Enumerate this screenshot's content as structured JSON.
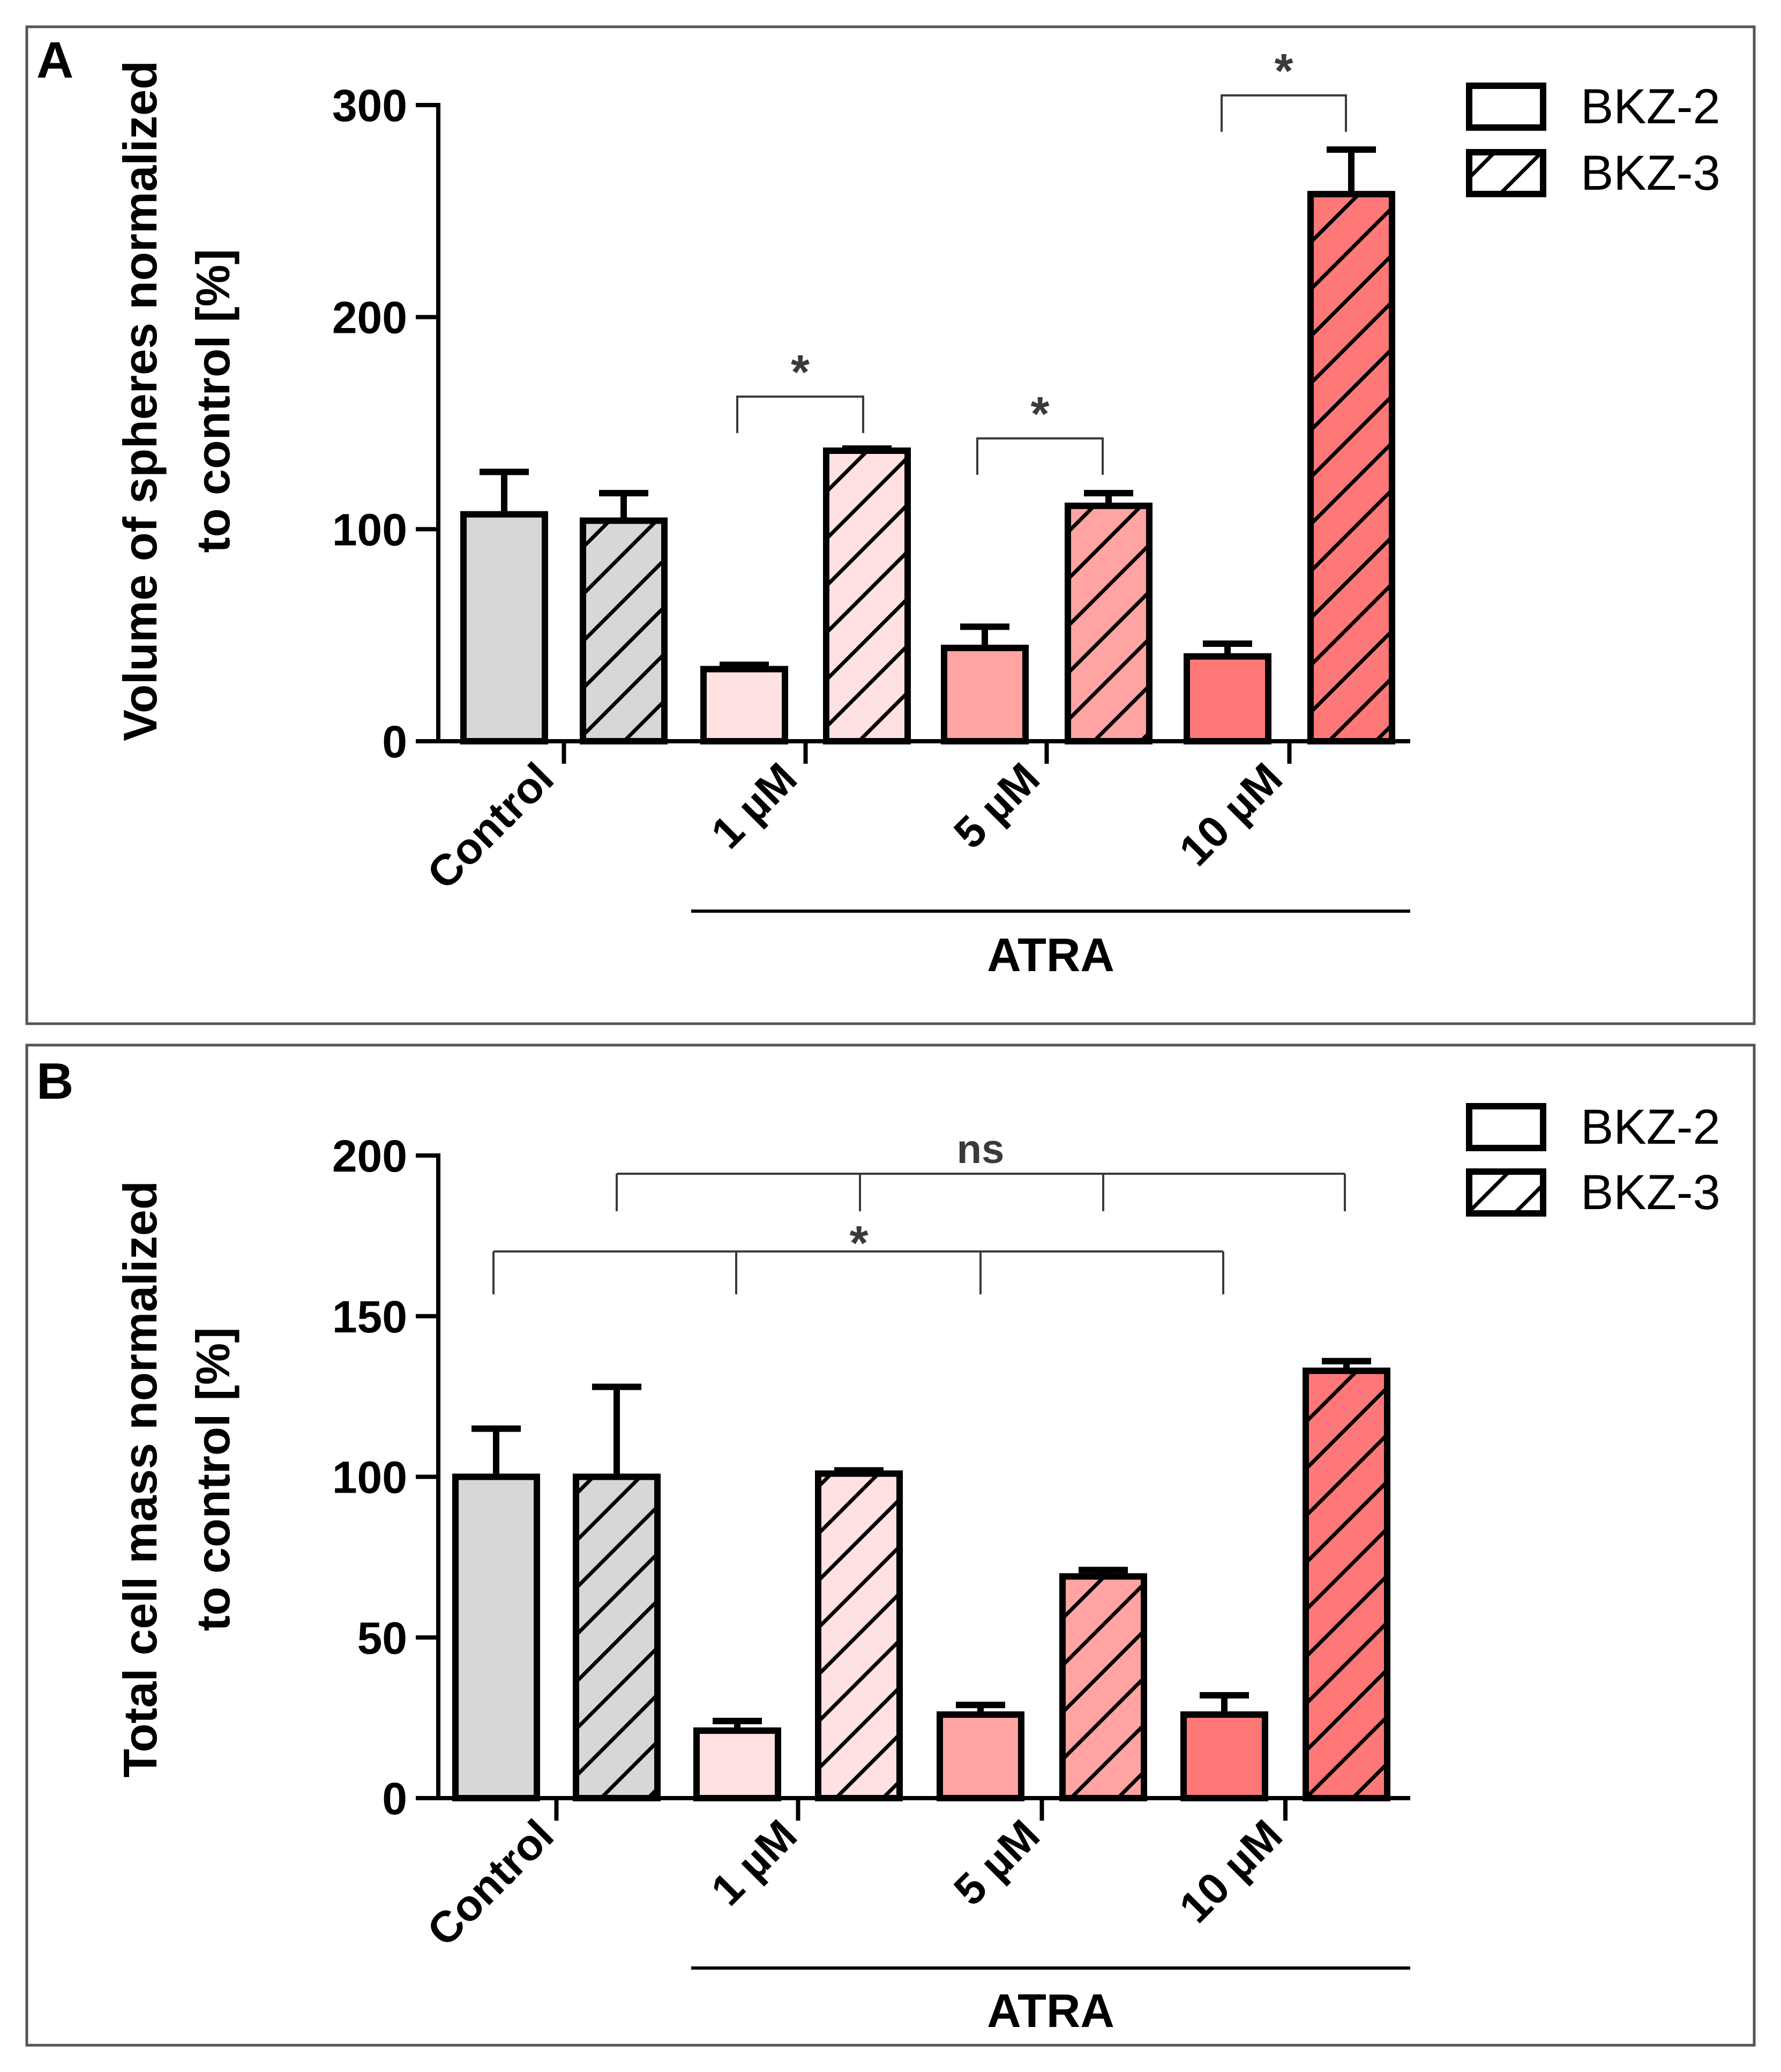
{
  "colors": {
    "control": "#d7d7d7",
    "atra_1uM": "#ffe1e1",
    "atra_5uM": "#ffa3a3",
    "atra_10uM": "#ff7878",
    "stroke": "#000000",
    "bracket": "#3a3a3a",
    "frame": "#555555"
  },
  "chart_data": [
    {
      "panel": "A",
      "type": "bar",
      "ylabel_line1": "Volume of spheres normalized",
      "ylabel_line2": "to control [%]",
      "ylim": [
        0,
        300
      ],
      "yticks": [
        "0",
        "100",
        "200",
        "300"
      ],
      "categories": [
        "Control",
        "1 µM",
        "5 µM",
        "10 µM"
      ],
      "group_label": "ATRA",
      "legend": [
        "BKZ-2",
        "BKZ-3"
      ],
      "series": [
        {
          "name": "BKZ-2",
          "values": [
            107,
            34,
            44,
            40
          ],
          "errors": [
            20,
            2,
            10,
            6
          ]
        },
        {
          "name": "BKZ-3",
          "values": [
            104,
            137,
            111,
            258
          ],
          "errors": [
            13,
            1,
            6,
            21
          ]
        }
      ],
      "significance": [
        {
          "label": "*",
          "group": 1
        },
        {
          "label": "*",
          "group": 2
        },
        {
          "label": "*",
          "group": 3
        }
      ]
    },
    {
      "panel": "B",
      "type": "bar",
      "ylabel_line1": "Total cell mass normalized",
      "ylabel_line2": "to control [%]",
      "ylim": [
        0,
        200
      ],
      "yticks": [
        "0",
        "50",
        "100",
        "150",
        "200"
      ],
      "categories": [
        "Control",
        "1 µM",
        "5 µM",
        "10 µM"
      ],
      "group_label": "ATRA",
      "legend": [
        "BKZ-2",
        "BKZ-3"
      ],
      "series": [
        {
          "name": "BKZ-2",
          "values": [
            100,
            21,
            26,
            26
          ],
          "errors": [
            15,
            3,
            3,
            6
          ]
        },
        {
          "name": "BKZ-3",
          "values": [
            100,
            101,
            69,
            133
          ],
          "errors": [
            28,
            1,
            2,
            3
          ]
        }
      ],
      "comparisons": [
        {
          "label": "ns",
          "series": "BKZ-3"
        },
        {
          "label": "*",
          "series": "BKZ-2"
        }
      ]
    }
  ]
}
